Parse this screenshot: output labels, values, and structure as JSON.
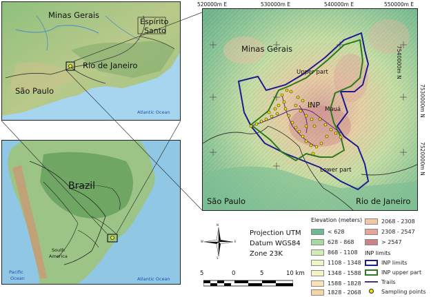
{
  "regional_map": {
    "labels": {
      "minas_gerais": "Minas Gerais",
      "espirito_santo_line1": "Espírito",
      "espirito_santo_line2": "Santo",
      "rio_de_janeiro": "Rio de Janeiro",
      "sao_paulo": "São Paulo",
      "atlantic": "Atlantic Ocean"
    }
  },
  "continent_map": {
    "labels": {
      "brazil": "Brazil",
      "south_america_line1": "South",
      "south_america_line2": "America",
      "pacific_line1": "Pacific",
      "pacific_line2": "Ocean",
      "atlantic": "Atlantic Ocean"
    }
  },
  "park_map": {
    "easting_ticks": [
      "520000m E",
      "530000m E",
      "540000m E",
      "550000m E"
    ],
    "northing_ticks": [
      "7540000m N",
      "7530000m N",
      "7520000m N"
    ],
    "labels": {
      "minas_gerais": "Minas Gerais",
      "upper_part": "Upper part",
      "inp": "INP",
      "maua": "Mauá",
      "lower_part": "Lower part",
      "sao_paulo": "São Paulo",
      "rio_de_janeiro": "Rio de Janeiro"
    }
  },
  "projection": {
    "line1": "Projection UTM",
    "line2": "Datum WGS84",
    "line3": "Zone 23K"
  },
  "compass": {
    "n": "N",
    "s": "S",
    "e": "E",
    "w": "W"
  },
  "scale_bar": {
    "labels": [
      "5",
      "0",
      "5",
      "10 km"
    ]
  },
  "legend": {
    "elevation_title": "Elevation (meters)",
    "elevation": [
      {
        "label": "< 628",
        "color": "#6fb98f"
      },
      {
        "label": "628 - 868",
        "color": "#a9d9a3"
      },
      {
        "label": "868 - 1108",
        "color": "#d3ecb1"
      },
      {
        "label": "1108 - 1348",
        "color": "#eef6c6"
      },
      {
        "label": "1348 - 1588",
        "color": "#f6f3c4"
      },
      {
        "label": "1588 - 1828",
        "color": "#f7e3b3"
      },
      {
        "label": "1828 - 2068",
        "color": "#f6d4a6"
      },
      {
        "label": "2068 - 2308",
        "color": "#f2c6a0"
      },
      {
        "label": "2308 - 2547",
        "color": "#e4a59a"
      },
      {
        "label": "> 2547",
        "color": "#c9848a"
      }
    ],
    "inp_title": "INP limits",
    "inp_limits": "INP limits",
    "inp_upper": "INP upper part",
    "trails": "Trails",
    "sampling": "Sampling points"
  }
}
